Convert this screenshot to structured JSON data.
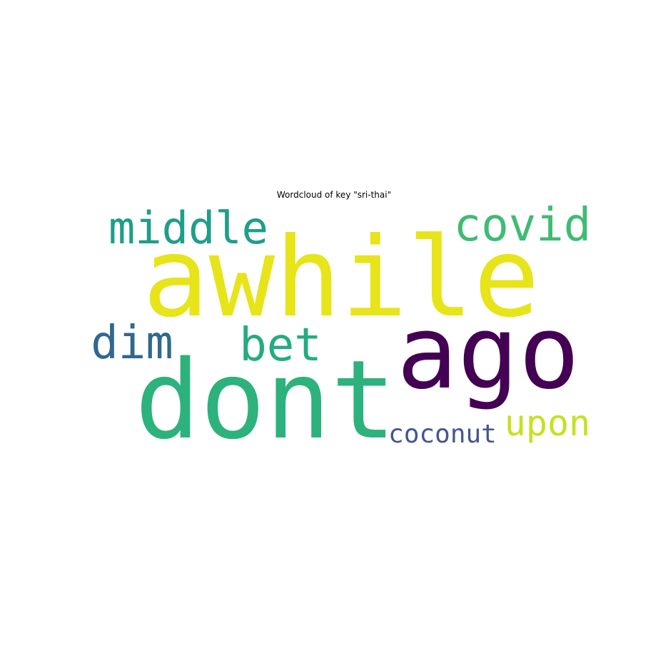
{
  "chart_data": {
    "type": "wordcloud",
    "title": "Wordcloud of key \"sri-thai\"",
    "words": [
      {
        "text": "awhile",
        "weight": 1.0,
        "color": "#e7e419"
      },
      {
        "text": "dont",
        "weight": 0.95,
        "color": "#2db27d"
      },
      {
        "text": "ago",
        "weight": 0.9,
        "color": "#440154"
      },
      {
        "text": "middle",
        "weight": 0.45,
        "color": "#1f9e89"
      },
      {
        "text": "covid",
        "weight": 0.45,
        "color": "#3fbc73"
      },
      {
        "text": "dim",
        "weight": 0.42,
        "color": "#31688e"
      },
      {
        "text": "bet",
        "weight": 0.42,
        "color": "#25ab82"
      },
      {
        "text": "upon",
        "weight": 0.38,
        "color": "#c8e020"
      },
      {
        "text": "coconut",
        "weight": 0.3,
        "color": "#46568c"
      }
    ],
    "background": "#ffffff"
  }
}
